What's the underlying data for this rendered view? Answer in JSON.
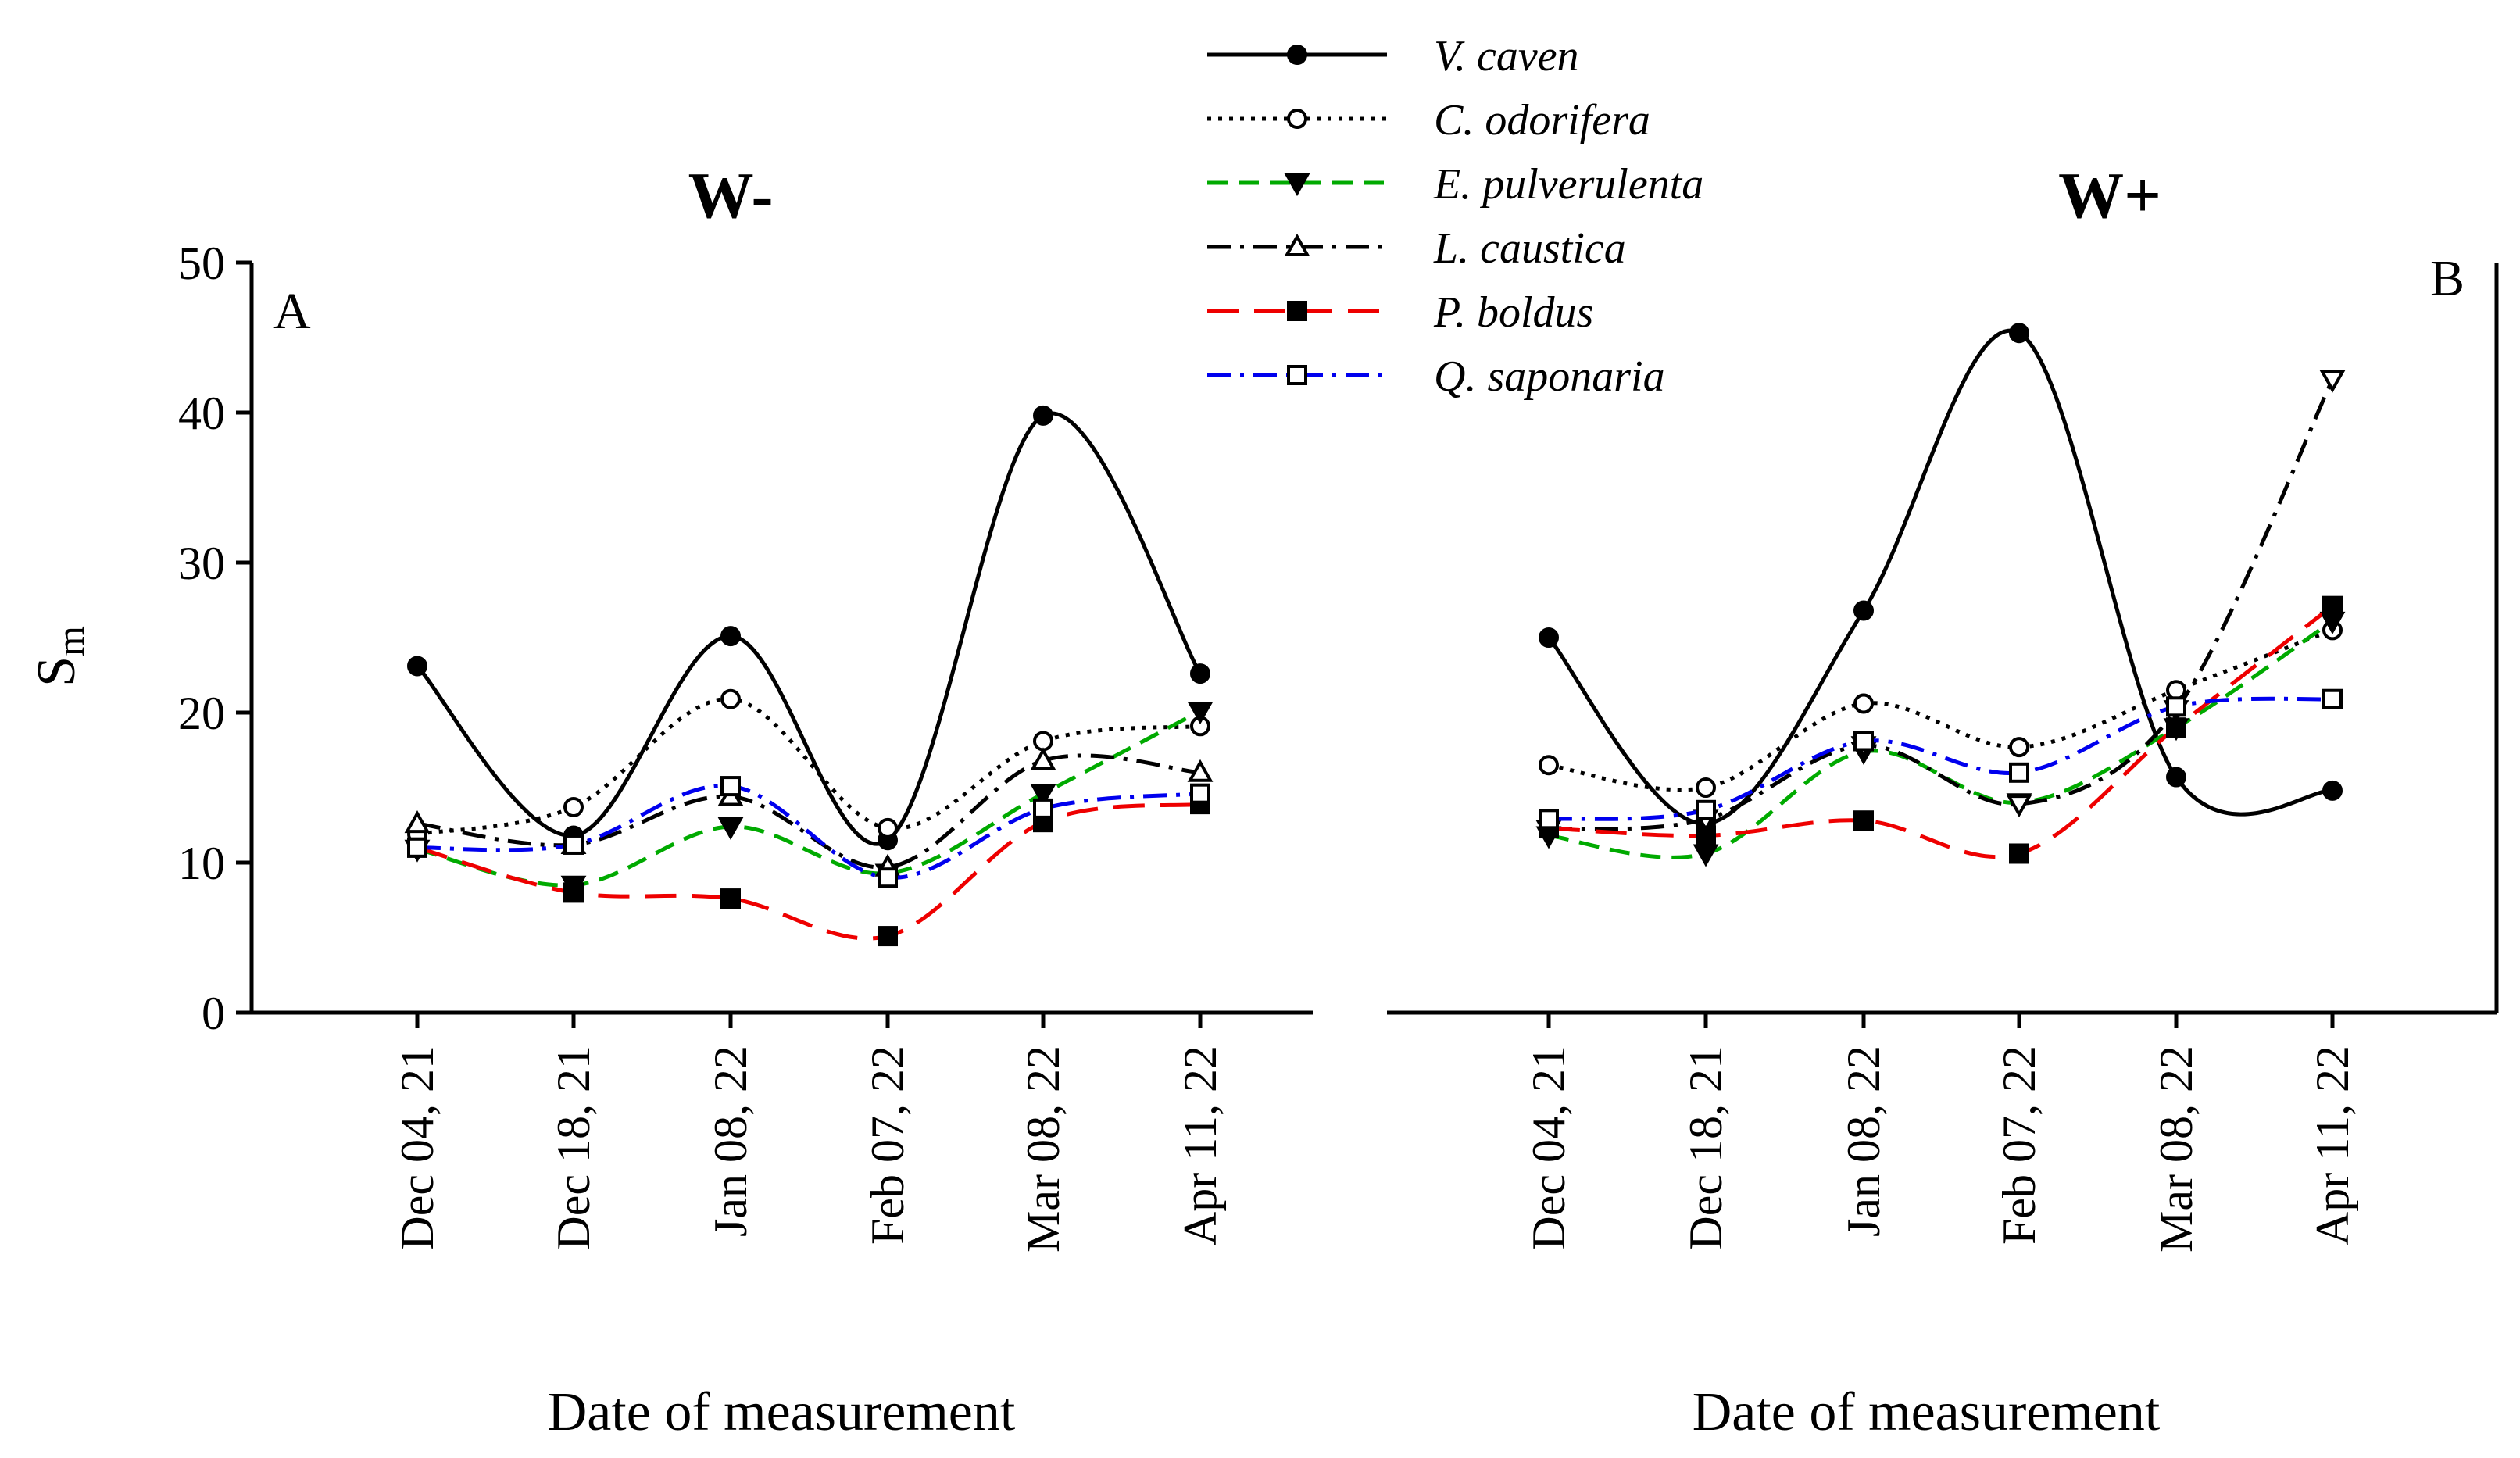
{
  "chart_data": [
    {
      "type": "line",
      "panel": "A",
      "title": "W-",
      "xlabel": "Date of measurement",
      "ylabel": "S",
      "ylabel_subscript": "m",
      "ylim": [
        0,
        50
      ],
      "yticks": [
        "0",
        "10",
        "20",
        "30",
        "40",
        "50"
      ],
      "categories": [
        "Dec 04, 21",
        "Dec 18, 21",
        "Jan 08, 22",
        "Feb 07, 22",
        "Mar 08, 22",
        "Apr 11, 22"
      ],
      "series": [
        {
          "name": "V. caven",
          "color": "#000000",
          "dash": "solid",
          "marker": "circle",
          "fill": "filled",
          "values": [
            23.1,
            11.8,
            25.1,
            11.5,
            39.8,
            22.6
          ]
        },
        {
          "name": "C. odorifera",
          "color": "#000000",
          "dash": "dotted",
          "marker": "circle",
          "fill": "open",
          "values": [
            11.9,
            13.7,
            20.9,
            12.3,
            18.1,
            19.1
          ]
        },
        {
          "name": "E. pulverulenta",
          "color": "#00aa00",
          "dash": "dashed",
          "marker": "triangle-down",
          "fill": "filled",
          "values": [
            10.9,
            8.5,
            12.4,
            9.3,
            14.6,
            20.1
          ]
        },
        {
          "name": "L. caustica",
          "color": "#000000",
          "dash": "dashdot",
          "marker": "triangle-up",
          "fill": "open",
          "values": [
            12.6,
            11.2,
            14.4,
            9.7,
            16.8,
            16.0
          ]
        },
        {
          "name": "P. boldus",
          "color": "#ee0000",
          "dash": "longdash",
          "marker": "square",
          "fill": "filled",
          "values": [
            11.0,
            8.0,
            7.6,
            5.1,
            12.7,
            13.9
          ]
        },
        {
          "name": "Q. saponaria",
          "color": "#0000ee",
          "dash": "dashdot",
          "marker": "square",
          "fill": "open",
          "values": [
            11.0,
            11.2,
            15.1,
            9.0,
            13.6,
            14.6
          ]
        }
      ]
    },
    {
      "type": "line",
      "panel": "B",
      "title": "W+",
      "xlabel": "Date of measurement",
      "ylim": [
        0,
        50
      ],
      "categories": [
        "Dec 04, 21",
        "Dec 18, 21",
        "Jan 08, 22",
        "Feb 07, 22",
        "Mar 08, 22",
        "Apr 11, 22"
      ],
      "series": [
        {
          "name": "V. caven",
          "color": "#000000",
          "dash": "solid",
          "marker": "circle",
          "fill": "filled",
          "values": [
            25.0,
            12.6,
            26.8,
            45.3,
            15.7,
            14.8
          ]
        },
        {
          "name": "C. odorifera",
          "color": "#000000",
          "dash": "dotted",
          "marker": "circle",
          "fill": "open",
          "values": [
            16.5,
            15.0,
            20.6,
            17.7,
            21.5,
            25.5
          ]
        },
        {
          "name": "E. pulverulenta",
          "color": "#00aa00",
          "dash": "dashed",
          "marker": "triangle-down",
          "fill": "filled",
          "values": [
            11.8,
            10.6,
            17.4,
            14.0,
            19.0,
            26.1
          ]
        },
        {
          "name": "L. caustica",
          "color": "#000000",
          "dash": "dashdot",
          "marker": "triangle-down",
          "fill": "open",
          "values": [
            12.2,
            12.9,
            17.8,
            13.9,
            20.2,
            42.2
          ]
        },
        {
          "name": "P. boldus",
          "color": "#ee0000",
          "dash": "longdash",
          "marker": "square",
          "fill": "filled",
          "values": [
            12.3,
            11.8,
            12.8,
            10.6,
            19.0,
            27.1
          ]
        },
        {
          "name": "Q. saponaria",
          "color": "#0000ee",
          "dash": "dashdot",
          "marker": "square",
          "fill": "open",
          "values": [
            12.9,
            13.5,
            18.1,
            16.0,
            20.4,
            20.9
          ]
        }
      ]
    }
  ]
}
